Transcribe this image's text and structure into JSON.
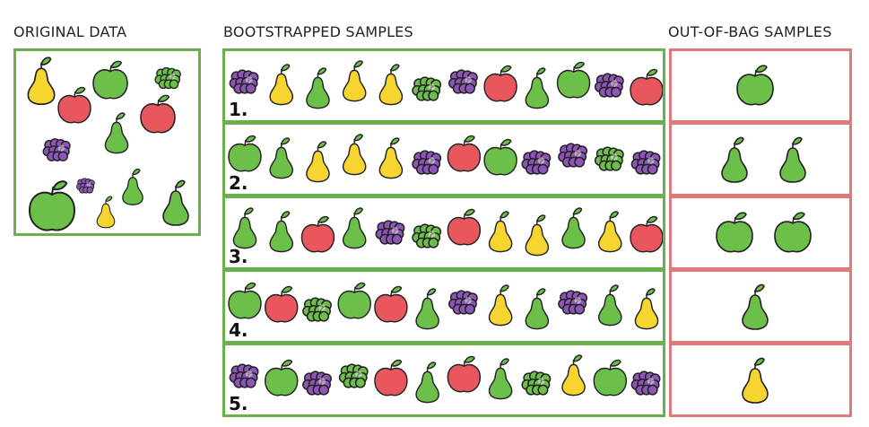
{
  "headings": {
    "original": "ORIGINAL DATA",
    "bootstrapped": "BOOTSTRAPPED SAMPLES",
    "oob": "OUT-OF-BAG SAMPLES"
  },
  "colors": {
    "green_border": "#6ab04c",
    "red_border": "#e07a7a",
    "green_fruit": "#6cc04a",
    "red_fruit": "#e8575e",
    "yellow_fruit": "#f7d531",
    "purple_fruit": "#8e55b8"
  },
  "rows": [
    {
      "label": "1.",
      "items": [
        "grape-purple",
        "pear-yellow",
        "pear-green",
        "pear-yellow",
        "pear-yellow",
        "grape-green",
        "grape-purple",
        "apple-red",
        "pear-green",
        "apple-green",
        "grape-purple",
        "apple-red"
      ],
      "oob": [
        "apple-green"
      ]
    },
    {
      "label": "2.",
      "items": [
        "apple-green",
        "pear-green",
        "pear-yellow",
        "pear-yellow",
        "pear-yellow",
        "grape-purple",
        "apple-red",
        "apple-green",
        "grape-purple",
        "grape-purple",
        "grape-green",
        "grape-purple"
      ],
      "oob": [
        "pear-green",
        "pear-green"
      ]
    },
    {
      "label": "3.",
      "items": [
        "pear-green",
        "pear-green",
        "apple-red",
        "pear-green",
        "grape-purple",
        "grape-green",
        "apple-red",
        "pear-yellow",
        "pear-yellow",
        "pear-green",
        "pear-yellow",
        "apple-red"
      ],
      "oob": [
        "apple-green",
        "apple-green"
      ]
    },
    {
      "label": "4.",
      "items": [
        "apple-green",
        "apple-red",
        "grape-green",
        "apple-green",
        "apple-red",
        "pear-green",
        "grape-purple",
        "pear-yellow",
        "pear-green",
        "grape-purple",
        "pear-green",
        "pear-yellow"
      ],
      "oob": [
        "pear-green"
      ]
    },
    {
      "label": "5.",
      "items": [
        "grape-purple",
        "apple-green",
        "grape-purple",
        "grape-green",
        "apple-red",
        "pear-green",
        "apple-red",
        "pear-green",
        "grape-green",
        "pear-yellow",
        "apple-green",
        "grape-purple"
      ],
      "oob": [
        "pear-yellow"
      ]
    }
  ],
  "original_items": [
    "pear-yellow",
    "apple-green",
    "grape-green",
    "apple-red",
    "apple-red",
    "grape-purple",
    "pear-green",
    "apple-green",
    "grape-purple",
    "pear-green",
    "pear-yellow",
    "pear-green"
  ]
}
